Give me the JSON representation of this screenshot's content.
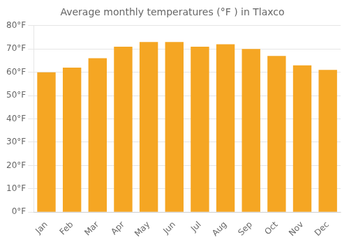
{
  "chart_data": {
    "type": "bar",
    "title": "Average monthly temperatures (°F ) in Tlaxco",
    "categories": [
      "Jan",
      "Feb",
      "Mar",
      "Apr",
      "May",
      "Jun",
      "Jul",
      "Aug",
      "Sep",
      "Oct",
      "Nov",
      "Dec"
    ],
    "values": [
      60,
      62,
      66,
      71,
      73,
      73,
      71,
      72,
      70,
      67,
      63,
      61
    ],
    "color": "#F5A623",
    "ylim": [
      0,
      80
    ],
    "yticks": [
      {
        "value": 0,
        "label": "0°F"
      },
      {
        "value": 10,
        "label": "10°F"
      },
      {
        "value": 20,
        "label": "20°F"
      },
      {
        "value": 30,
        "label": "30°F"
      },
      {
        "value": 40,
        "label": "40°F"
      },
      {
        "value": 50,
        "label": "50°F"
      },
      {
        "value": 60,
        "label": "60°F"
      },
      {
        "value": 70,
        "label": "70°F"
      },
      {
        "value": 80,
        "label": "80°F"
      }
    ],
    "grid": true
  }
}
